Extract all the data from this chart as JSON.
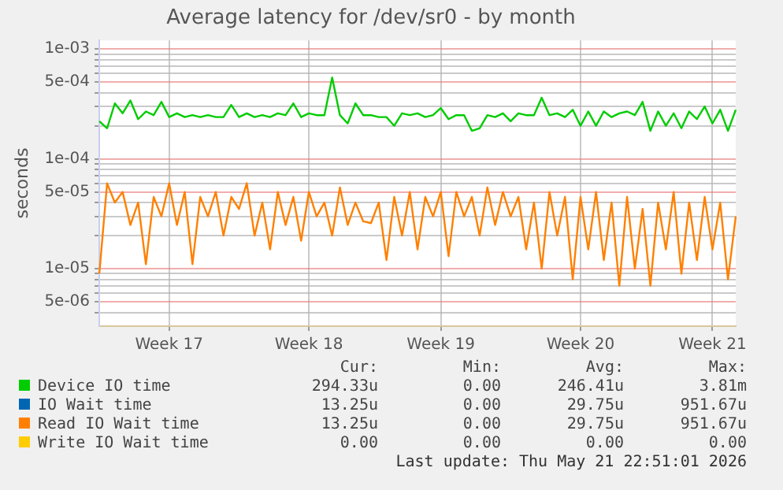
{
  "chart_data": {
    "type": "line",
    "title": "Average latency for /dev/sr0 - by month",
    "ylabel": "seconds",
    "categories": [
      null,
      null,
      null,
      null,
      null,
      null,
      null,
      null,
      null,
      "Week 17",
      null,
      null,
      null,
      null,
      null,
      null,
      null,
      null,
      null,
      null,
      null,
      null,
      null,
      null,
      null,
      null,
      null,
      "Week 18",
      null,
      null,
      null,
      null,
      null,
      null,
      null,
      null,
      null,
      null,
      null,
      null,
      null,
      null,
      null,
      null,
      "Week 19",
      null,
      null,
      null,
      null,
      null,
      null,
      null,
      null,
      null,
      null,
      null,
      null,
      null,
      null,
      null,
      null,
      null,
      "Week 20",
      null,
      null,
      null,
      null,
      null,
      null,
      null,
      null,
      null,
      null,
      null,
      null,
      null,
      null,
      null,
      null,
      "Week 21",
      null,
      null,
      null
    ],
    "series": [
      {
        "name": "Device IO time",
        "color": "#00cc00",
        "values": [
          0.00022,
          0.00019,
          0.00032,
          0.00026,
          0.00034,
          0.00023,
          0.00027,
          0.00025,
          0.00033,
          0.00024,
          0.00026,
          0.00024,
          0.00025,
          0.00024,
          0.00025,
          0.00024,
          0.00024,
          0.00031,
          0.00024,
          0.00026,
          0.00024,
          0.00025,
          0.00024,
          0.00026,
          0.00025,
          0.00032,
          0.00024,
          0.00026,
          0.00025,
          0.00025,
          0.00055,
          0.00025,
          0.00021,
          0.00032,
          0.00025,
          0.00025,
          0.00024,
          0.00024,
          0.0002,
          0.00026,
          0.00025,
          0.00026,
          0.00024,
          0.00025,
          0.00029,
          0.00023,
          0.00025,
          0.00025,
          0.00018,
          0.00019,
          0.00025,
          0.00024,
          0.00026,
          0.00022,
          0.00026,
          0.00025,
          0.00025,
          0.00036,
          0.00025,
          0.00026,
          0.00024,
          0.00028,
          0.0002,
          0.00027,
          0.0002,
          0.00027,
          0.00024,
          0.00026,
          0.00027,
          0.00025,
          0.00033,
          0.00018,
          0.00027,
          0.0002,
          0.00026,
          0.00019,
          0.00027,
          0.00023,
          0.0003,
          0.00021,
          0.00028,
          0.00018,
          0.00028
        ]
      },
      {
        "name": "IO Wait time",
        "color": "#0066b3",
        "values": [
          null,
          null,
          null,
          null,
          null,
          null,
          null,
          null,
          null,
          null,
          null,
          null,
          null,
          null,
          null,
          null,
          null,
          null,
          null,
          null,
          null,
          null,
          null,
          null,
          null,
          null,
          null,
          null,
          null,
          null,
          null,
          null,
          null,
          null,
          null,
          null,
          null,
          null,
          null,
          null,
          null,
          null,
          null,
          null,
          null,
          null,
          null,
          null,
          null,
          null,
          null,
          null,
          null,
          null,
          null,
          null,
          null,
          null,
          null,
          null,
          null,
          null,
          null,
          null,
          null,
          null,
          null,
          null,
          null,
          null,
          null,
          null,
          null,
          null,
          null,
          null,
          null,
          null,
          null,
          null,
          null,
          null,
          null
        ]
      },
      {
        "name": "Read IO Wait time",
        "color": "#ff8000",
        "values": [
          9e-06,
          6e-05,
          4e-05,
          5e-05,
          2.5e-05,
          4e-05,
          1.1e-05,
          4.5e-05,
          3e-05,
          6e-05,
          2.5e-05,
          5e-05,
          1.1e-05,
          4.5e-05,
          3e-05,
          5e-05,
          2e-05,
          4.5e-05,
          3.5e-05,
          6e-05,
          2e-05,
          4e-05,
          1.5e-05,
          5e-05,
          2.5e-05,
          4.5e-05,
          1.8e-05,
          5e-05,
          3e-05,
          4e-05,
          2e-05,
          5.5e-05,
          2.5e-05,
          4e-05,
          2.7e-05,
          2.6e-05,
          4e-05,
          1.2e-05,
          4.5e-05,
          2e-05,
          5e-05,
          1.5e-05,
          4.5e-05,
          3e-05,
          5e-05,
          1.3e-05,
          5e-05,
          3e-05,
          4.5e-05,
          2e-05,
          5.5e-05,
          2.5e-05,
          5e-05,
          3e-05,
          4.5e-05,
          1.5e-05,
          4e-05,
          1e-05,
          5e-05,
          2e-05,
          4.5e-05,
          8e-06,
          4.5e-05,
          1.5e-05,
          5e-05,
          1.2e-05,
          4e-05,
          7e-06,
          4.5e-05,
          1e-05,
          3.5e-05,
          7e-06,
          4e-05,
          1.5e-05,
          5e-05,
          9e-06,
          4e-05,
          1.2e-05,
          4.5e-05,
          1.5e-05,
          4e-05,
          8e-06,
          3e-05
        ]
      },
      {
        "name": "Write IO Wait time",
        "color": "#ffcc00",
        "values": [
          null,
          null,
          null,
          null,
          null,
          null,
          null,
          null,
          null,
          null,
          null,
          null,
          null,
          null,
          null,
          null,
          null,
          null,
          null,
          null,
          null,
          null,
          null,
          null,
          null,
          null,
          null,
          null,
          null,
          null,
          null,
          null,
          null,
          null,
          null,
          null,
          null,
          null,
          null,
          null,
          null,
          null,
          null,
          null,
          null,
          null,
          null,
          null,
          null,
          null,
          null,
          null,
          null,
          null,
          null,
          null,
          null,
          null,
          null,
          null,
          null,
          null,
          null,
          null,
          null,
          null,
          null,
          null,
          null,
          null,
          null,
          null,
          null,
          null,
          null,
          null,
          null,
          null,
          null,
          null,
          null,
          null,
          null
        ]
      }
    ],
    "log": "y",
    "ylim": [
      3e-06,
      0.0012
    ],
    "yticks": [
      {
        "value": 4e-06,
        "label": null
      },
      {
        "value": 5e-06,
        "label": "5e-06"
      },
      {
        "value": 6e-06,
        "label": null
      },
      {
        "value": 7e-06,
        "label": null
      },
      {
        "value": 8e-06,
        "label": null
      },
      {
        "value": 9e-06,
        "label": null
      },
      {
        "value": 1e-05,
        "label": "1e-05"
      },
      {
        "value": 2e-05,
        "label": null
      },
      {
        "value": 3e-05,
        "label": null
      },
      {
        "value": 4e-05,
        "label": null
      },
      {
        "value": 5e-05,
        "label": "5e-05"
      },
      {
        "value": 6e-05,
        "label": null
      },
      {
        "value": 7e-05,
        "label": null
      },
      {
        "value": 8e-05,
        "label": null
      },
      {
        "value": 9e-05,
        "label": null
      },
      {
        "value": 0.0001,
        "label": "1e-04"
      },
      {
        "value": 0.0002,
        "label": null
      },
      {
        "value": 0.0003,
        "label": null
      },
      {
        "value": 0.0004,
        "label": null
      },
      {
        "value": 0.0005,
        "label": "5e-04"
      },
      {
        "value": 0.0006,
        "label": null
      },
      {
        "value": 0.0007,
        "label": null
      },
      {
        "value": 0.0008,
        "label": null
      },
      {
        "value": 0.0009,
        "label": null
      },
      {
        "value": 0.001,
        "label": "1e-03"
      }
    ],
    "grid": true,
    "legend": "bottom",
    "annotations": [
      "Cur:",
      "Min:",
      "Avg:",
      "Max:",
      "294.33u",
      "0.00",
      "246.41u",
      "3.81m",
      "13.25u",
      "0.00",
      "29.75u",
      "951.67u",
      "13.25u",
      "0.00",
      "29.75u",
      "951.67u",
      "0.00",
      "0.00",
      "0.00",
      "0.00",
      "Last update: Thu May 21 22:51:01 2026"
    ]
  }
}
